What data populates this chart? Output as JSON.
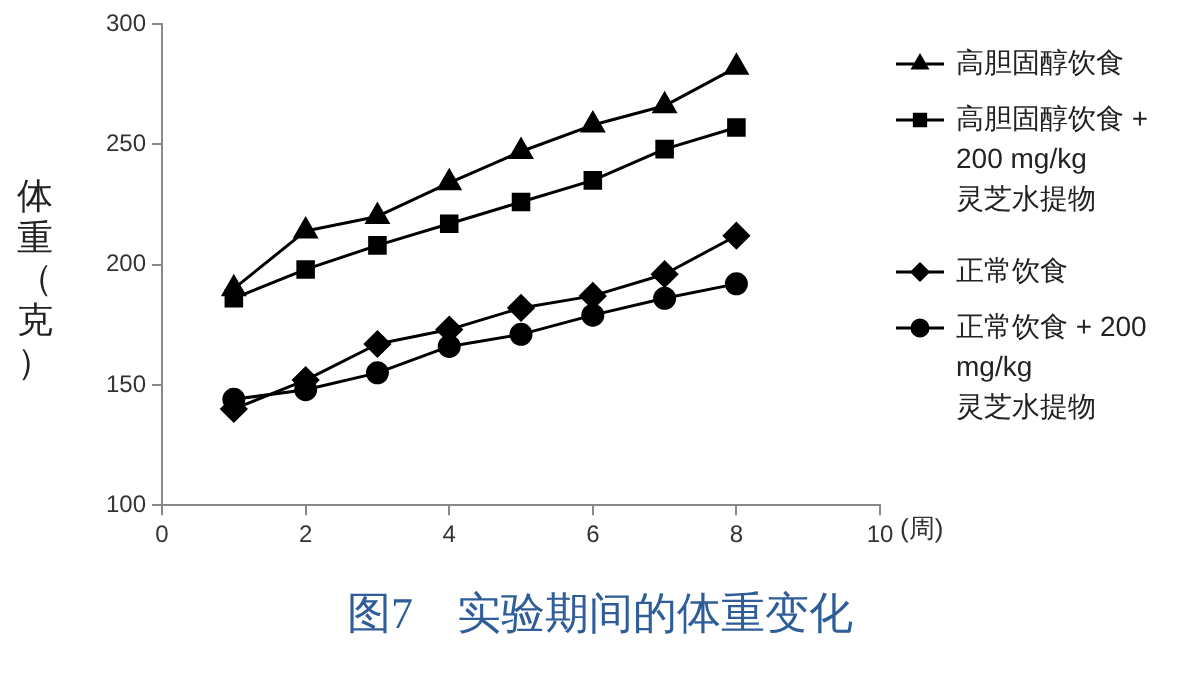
{
  "chart_data": {
    "type": "line",
    "title": "图7　实验期间的体重变化",
    "xlabel": "(周)",
    "ylabel": "体重（克）",
    "xlim": [
      0,
      10
    ],
    "xticks": [
      0,
      2,
      4,
      6,
      8,
      10
    ],
    "ylim": [
      100,
      300
    ],
    "yticks": [
      100,
      150,
      200,
      250,
      300
    ],
    "grid": false,
    "legend": "right",
    "line_style": "solid",
    "x": [
      1,
      2,
      3,
      4,
      5,
      6,
      7,
      8
    ],
    "series": [
      {
        "name": "高胆固醇饮食",
        "color": "#000000",
        "marker": "triangle",
        "values": [
          190,
          214,
          220,
          234,
          247,
          258,
          266,
          282
        ]
      },
      {
        "name": "高胆固醇饮食 + 200 mg/kg 灵芝水提物",
        "color": "#000000",
        "marker": "square",
        "values": [
          186,
          198,
          208,
          217,
          226,
          235,
          248,
          257
        ]
      },
      {
        "name": "正常饮食",
        "color": "#000000",
        "marker": "diamond",
        "values": [
          140,
          152,
          167,
          173,
          182,
          187,
          196,
          212
        ]
      },
      {
        "name": "正常饮食 + 200 mg/kg 灵芝水提物",
        "color": "#000000",
        "marker": "circle",
        "values": [
          144,
          148,
          155,
          166,
          171,
          179,
          186,
          192
        ]
      }
    ]
  }
}
